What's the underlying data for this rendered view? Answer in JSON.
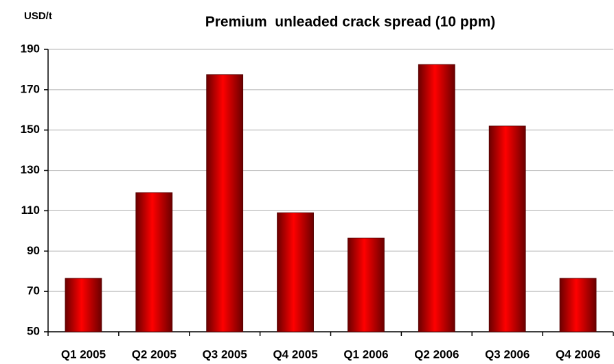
{
  "chart_data": {
    "type": "bar",
    "title": "Premium  unleaded crack spread (10 ppm)",
    "y_label": "USD/t",
    "categories": [
      "Q1 2005",
      "Q2 2005",
      "Q3 2005",
      "Q4 2005",
      "Q1 2006",
      "Q2 2006",
      "Q3 2006",
      "Q4 2006"
    ],
    "values": [
      76.5,
      119,
      177.5,
      109,
      96.5,
      182.5,
      152,
      76.5
    ],
    "color": "#ff0000",
    "ylim": [
      50,
      190
    ],
    "yticks": [
      50,
      70,
      90,
      110,
      130,
      150,
      170,
      190
    ],
    "grid": true
  }
}
